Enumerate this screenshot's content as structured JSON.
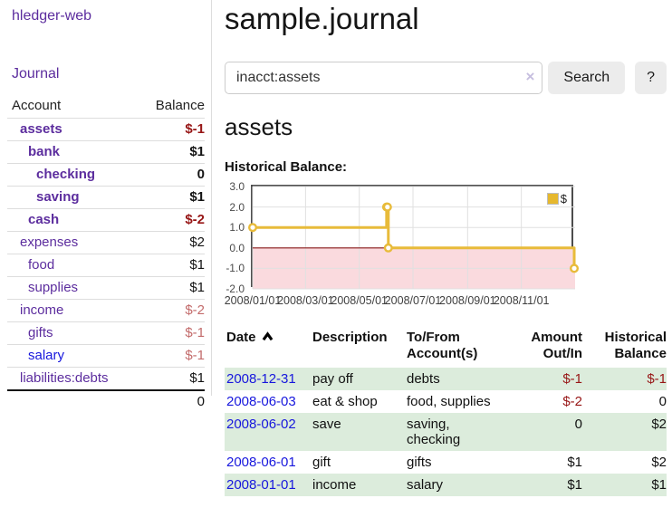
{
  "colors": {
    "accent_purple": "#5c2d9e",
    "link_blue": "#1717dd",
    "negative_strong": "#971616",
    "negative_soft": "#c36b6b",
    "row_highlight_green": "#dcecdc",
    "chart_line_gold": "#e8bb3a",
    "chart_negative_region_pink": "#fadade",
    "chart_zero_line_red": "#8b1a1a"
  },
  "sidebar": {
    "brand": "hledger-web",
    "journal_label": "Journal",
    "accounts_table": {
      "headers": [
        "Account",
        "Balance"
      ],
      "rows": [
        {
          "name": "assets",
          "indent": 1,
          "bold": true,
          "link_color": "purple",
          "balance": "$-1",
          "balance_style": "neg-strong"
        },
        {
          "name": "bank",
          "indent": 2,
          "bold": true,
          "link_color": "purple",
          "balance": "$1",
          "balance_style": "pos"
        },
        {
          "name": "checking",
          "indent": 3,
          "bold": true,
          "link_color": "purple",
          "balance": "0",
          "balance_style": "pos"
        },
        {
          "name": "saving",
          "indent": 3,
          "bold": true,
          "link_color": "purple",
          "balance": "$1",
          "balance_style": "pos"
        },
        {
          "name": "cash",
          "indent": 2,
          "bold": true,
          "link_color": "purple",
          "balance": "$-2",
          "balance_style": "neg-strong"
        },
        {
          "name": "expenses",
          "indent": 1,
          "bold": false,
          "link_color": "purple",
          "balance": "$2",
          "balance_style": "pos"
        },
        {
          "name": "food",
          "indent": 2,
          "bold": false,
          "link_color": "purple",
          "balance": "$1",
          "balance_style": "pos"
        },
        {
          "name": "supplies",
          "indent": 2,
          "bold": false,
          "link_color": "purple",
          "balance": "$1",
          "balance_style": "pos"
        },
        {
          "name": "income",
          "indent": 1,
          "bold": false,
          "link_color": "purple",
          "balance": "$-2",
          "balance_style": "neg-soft"
        },
        {
          "name": "gifts",
          "indent": 2,
          "bold": false,
          "link_color": "purple",
          "balance": "$-1",
          "balance_style": "neg-soft"
        },
        {
          "name": "salary",
          "indent": 2,
          "bold": false,
          "link_color": "blue",
          "balance": "$-1",
          "balance_style": "neg-soft"
        },
        {
          "name": "liabilities:debts",
          "indent": 1,
          "bold": false,
          "link_color": "purple",
          "balance": "$1",
          "balance_style": "pos"
        }
      ],
      "total": "0"
    }
  },
  "header": {
    "title": "sample.journal"
  },
  "search": {
    "value": "inacct:assets",
    "clear_icon": "×",
    "button_label": "Search",
    "help_label": "?"
  },
  "account_page": {
    "title": "assets",
    "chart_label": "Historical Balance:"
  },
  "chart_data": {
    "type": "line",
    "step": true,
    "title": "Historical Balance:",
    "series": [
      {
        "name": "$",
        "points": [
          [
            "2008-01-01",
            1
          ],
          [
            "2008-06-01",
            2
          ],
          [
            "2008-06-02",
            2
          ],
          [
            "2008-06-03",
            0
          ],
          [
            "2008-12-31",
            -1
          ]
        ]
      }
    ],
    "x_range": [
      "2008-01-01",
      "2009-01-01"
    ],
    "y_range": [
      -2,
      3
    ],
    "y_ticks": [
      3,
      2,
      1,
      0,
      -1,
      -2
    ],
    "y_tick_labels": [
      "3.0",
      "2.0",
      "1.0",
      "0.0",
      "-1.0",
      "-2.0"
    ],
    "x_ticks": [
      "2008-01-01",
      "2008-03-01",
      "2008-05-01",
      "2008-07-01",
      "2008-09-01",
      "2008-11-01"
    ],
    "x_tick_labels": [
      "2008/01/01",
      "2008/03/01",
      "2008/05/01",
      "2008/07/01",
      "2008/09/01",
      "2008/11/01"
    ],
    "legend_position": "top-right",
    "grid": true
  },
  "register_table": {
    "headers": [
      {
        "lines": [
          "Date"
        ],
        "align": "left",
        "sorted_ascending": true
      },
      {
        "lines": [
          "Description"
        ],
        "align": "left"
      },
      {
        "lines": [
          "To/From",
          "Account(s)"
        ],
        "align": "left"
      },
      {
        "lines": [
          "Amount",
          "Out/In"
        ],
        "align": "right"
      },
      {
        "lines": [
          "Historical",
          "Balance"
        ],
        "align": "right"
      }
    ],
    "rows": [
      {
        "date": "2008-12-31",
        "description": "pay off",
        "accounts": "debts",
        "amount": "$-1",
        "amount_negative": true,
        "balance": "$-1",
        "balance_negative": true,
        "highlighted": true
      },
      {
        "date": "2008-06-03",
        "description": "eat & shop",
        "accounts": "food, supplies",
        "amount": "$-2",
        "amount_negative": true,
        "balance": "0",
        "balance_negative": false,
        "highlighted": false
      },
      {
        "date": "2008-06-02",
        "description": "save",
        "accounts": "saving, checking",
        "amount": "0",
        "amount_negative": false,
        "balance": "$2",
        "balance_negative": false,
        "highlighted": true
      },
      {
        "date": "2008-06-01",
        "description": "gift",
        "accounts": "gifts",
        "amount": "$1",
        "amount_negative": false,
        "balance": "$2",
        "balance_negative": false,
        "highlighted": false
      },
      {
        "date": "2008-01-01",
        "description": "income",
        "accounts": "salary",
        "amount": "$1",
        "amount_negative": false,
        "balance": "$1",
        "balance_negative": false,
        "highlighted": true
      }
    ]
  }
}
